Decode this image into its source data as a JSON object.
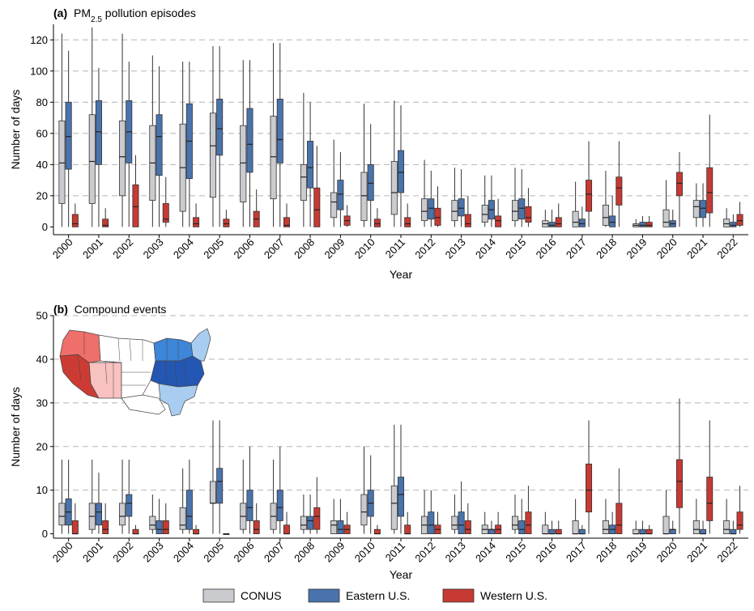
{
  "colors": {
    "CONUS": "#c9cbcf",
    "Eastern U.S.": "#4a73ad",
    "Western U.S.": "#c63a33",
    "grid": "#b5b5b5",
    "map_western_dark": "#cc3b33",
    "map_western_mid": "#ef6f6a",
    "map_western_light": "#f7c2c0",
    "map_eastern_dark": "#2457b3",
    "map_eastern_mid": "#3d86d8",
    "map_eastern_light": "#a9cdf0"
  },
  "panels": {
    "a": {
      "tag": "(a)",
      "title_main": "PM",
      "title_sub": "2.5",
      "title_rest": " pollution episodes"
    },
    "b": {
      "tag": "(b)",
      "title_rest": "Compound events"
    }
  },
  "legend": {
    "items": [
      {
        "label": "CONUS",
        "color": "#c9cbcf"
      },
      {
        "label": "Eastern U.S.",
        "color": "#4a73ad"
      },
      {
        "label": "Western U.S.",
        "color": "#c63a33"
      }
    ]
  },
  "chart_data": [
    {
      "type": "boxplot",
      "title": "PM2.5 pollution episodes",
      "xlabel": "Year",
      "ylabel": "Number of days",
      "ylim": [
        -5,
        130
      ],
      "yticks": [
        0,
        20,
        40,
        60,
        80,
        100,
        120
      ],
      "grid": "horizontal dashed",
      "categories": [
        "2000",
        "2001",
        "2002",
        "2003",
        "2004",
        "2005",
        "2006",
        "2007",
        "2008",
        "2009",
        "2010",
        "2011",
        "2012",
        "2013",
        "2014",
        "2015",
        "2016",
        "2017",
        "2018",
        "2019",
        "2020",
        "2021",
        "2022"
      ],
      "series": [
        {
          "name": "CONUS",
          "boxes": [
            [
              0,
              15,
              41,
              68,
              124
            ],
            [
              0,
              15,
              42,
              72,
              128
            ],
            [
              0,
              20,
              45,
              68,
              124
            ],
            [
              0,
              17,
              41,
              65,
              110
            ],
            [
              0,
              10,
              38,
              66,
              106
            ],
            [
              0,
              19,
              52,
              73,
              116
            ],
            [
              0,
              16,
              41,
              65,
              107
            ],
            [
              0,
              18,
              45,
              71,
              118
            ],
            [
              0,
              17,
              32,
              40,
              86
            ],
            [
              0,
              6,
              16,
              22,
              56
            ],
            [
              0,
              4,
              20,
              35,
              79
            ],
            [
              0,
              8,
              22,
              42,
              81
            ],
            [
              0,
              4,
              10,
              18,
              43
            ],
            [
              0,
              4,
              10,
              17,
              38
            ],
            [
              0,
              3,
              8,
              14,
              33
            ],
            [
              0,
              4,
              10,
              17,
              38
            ],
            [
              0,
              0,
              2,
              4,
              11
            ],
            [
              0,
              0,
              3,
              10,
              29
            ],
            [
              0,
              1,
              6,
              14,
              36
            ],
            [
              0,
              0,
              1,
              2,
              5
            ],
            [
              0,
              0,
              3,
              11,
              30
            ],
            [
              0,
              6,
              13,
              17,
              28
            ],
            [
              0,
              0,
              2,
              5,
              12
            ]
          ]
        },
        {
          "name": "Eastern U.S.",
          "boxes": [
            [
              0,
              37,
              58,
              80,
              113
            ],
            [
              0,
              40,
              61,
              81,
              102
            ],
            [
              0,
              41,
              61,
              81,
              106
            ],
            [
              0,
              33,
              58,
              72,
              103
            ],
            [
              0,
              31,
              55,
              79,
              106
            ],
            [
              0,
              46,
              63,
              82,
              116
            ],
            [
              0,
              35,
              53,
              76,
              107
            ],
            [
              0,
              41,
              56,
              82,
              118
            ],
            [
              0,
              25,
              38,
              55,
              80
            ],
            [
              0,
              11,
              21,
              30,
              48
            ],
            [
              0,
              17,
              28,
              40,
              66
            ],
            [
              0,
              22,
              35,
              49,
              78
            ],
            [
              0,
              5,
              12,
              18,
              36
            ],
            [
              0,
              7,
              12,
              18,
              37
            ],
            [
              0,
              5,
              11,
              17,
              33
            ],
            [
              0,
              5,
              12,
              18,
              37
            ],
            [
              0,
              0,
              1,
              3,
              11
            ],
            [
              0,
              0,
              2,
              5,
              13
            ],
            [
              0,
              0,
              3,
              7,
              20
            ],
            [
              0,
              0,
              1,
              3,
              7
            ],
            [
              0,
              0,
              2,
              4,
              11
            ],
            [
              0,
              6,
              12,
              17,
              28
            ],
            [
              0,
              0,
              1,
              3,
              8
            ]
          ]
        },
        {
          "name": "Western U.S.",
          "boxes": [
            [
              0,
              0,
              2,
              8,
              15
            ],
            [
              0,
              0,
              1,
              5,
              12
            ],
            [
              0,
              0,
              13,
              27,
              46
            ],
            [
              0,
              3,
              5,
              15,
              32
            ],
            [
              0,
              0,
              2,
              6,
              15
            ],
            [
              0,
              0,
              2,
              5,
              11
            ],
            [
              0,
              0,
              5,
              10,
              24
            ],
            [
              0,
              0,
              1,
              6,
              15
            ],
            [
              0,
              0,
              11,
              25,
              52
            ],
            [
              0,
              1,
              4,
              7,
              14
            ],
            [
              0,
              0,
              2,
              5,
              12
            ],
            [
              0,
              0,
              2,
              6,
              15
            ],
            [
              0,
              1,
              6,
              12,
              26
            ],
            [
              0,
              0,
              2,
              8,
              20
            ],
            [
              0,
              0,
              4,
              7,
              18
            ],
            [
              0,
              3,
              6,
              13,
              25
            ],
            [
              0,
              0,
              2,
              6,
              15
            ],
            [
              0,
              10,
              21,
              30,
              55
            ],
            [
              0,
              14,
              25,
              32,
              55
            ],
            [
              0,
              0,
              1,
              3,
              7
            ],
            [
              0,
              20,
              28,
              35,
              48
            ],
            [
              0,
              9,
              22,
              38,
              72
            ],
            [
              0,
              1,
              4,
              8,
              16
            ]
          ]
        }
      ]
    },
    {
      "type": "boxplot",
      "title": "Compound events",
      "xlabel": "Year",
      "ylabel": "Number of days",
      "ylim": [
        -1,
        50
      ],
      "yticks": [
        0,
        10,
        20,
        30,
        40,
        50
      ],
      "grid": "horizontal dashed",
      "categories": [
        "2000",
        "2001",
        "2002",
        "2003",
        "2004",
        "2005",
        "2006",
        "2007",
        "2008",
        "2009",
        "2010",
        "2011",
        "2012",
        "2013",
        "2014",
        "2015",
        "2016",
        "2017",
        "2018",
        "2019",
        "2020",
        "2021",
        "2022"
      ],
      "series": [
        {
          "name": "CONUS",
          "boxes": [
            [
              0,
              2,
              4,
              7,
              17
            ],
            [
              0,
              1,
              4,
              7,
              17
            ],
            [
              0,
              2,
              4,
              7,
              17
            ],
            [
              0,
              1,
              2,
              4,
              9
            ],
            [
              0,
              1,
              2,
              6,
              15
            ],
            [
              0,
              7,
              7,
              12,
              26
            ],
            [
              0,
              1,
              4,
              7,
              17
            ],
            [
              0,
              1,
              4,
              7,
              17
            ],
            [
              0,
              1,
              2,
              4,
              9
            ],
            [
              0,
              0,
              2,
              3,
              8
            ],
            [
              0,
              2,
              5,
              9,
              20
            ],
            [
              0,
              1,
              7,
              11,
              25
            ],
            [
              0,
              0,
              2,
              4,
              10
            ],
            [
              0,
              1,
              2,
              4,
              9
            ],
            [
              0,
              0,
              1,
              2,
              5
            ],
            [
              0,
              1,
              2,
              4,
              9
            ],
            [
              0,
              0,
              0,
              2,
              5
            ],
            [
              0,
              0,
              0,
              3,
              8
            ],
            [
              0,
              0,
              1,
              3,
              8
            ],
            [
              0,
              0,
              0,
              1,
              3
            ],
            [
              0,
              0,
              0,
              4,
              10
            ],
            [
              0,
              0,
              1,
              3,
              8
            ],
            [
              0,
              0,
              1,
              3,
              8
            ]
          ]
        },
        {
          "name": "Eastern U.S.",
          "boxes": [
            [
              0,
              2,
              5,
              8,
              17
            ],
            [
              0,
              2,
              5,
              7,
              14
            ],
            [
              0,
              4,
              7,
              9,
              17
            ],
            [
              0,
              0,
              1,
              3,
              8
            ],
            [
              0,
              1,
              4,
              10,
              17
            ],
            [
              0,
              7,
              12,
              15,
              26
            ],
            [
              0,
              3,
              6,
              10,
              20
            ],
            [
              0,
              3,
              6,
              10,
              20
            ],
            [
              0,
              1,
              3,
              4,
              9
            ],
            [
              0,
              0,
              1,
              3,
              8
            ],
            [
              0,
              4,
              7,
              10,
              18
            ],
            [
              0,
              4,
              9,
              13,
              25
            ],
            [
              0,
              0,
              2,
              5,
              10
            ],
            [
              0,
              0,
              2,
              5,
              12
            ],
            [
              0,
              0,
              1,
              1,
              3
            ],
            [
              0,
              0,
              1,
              3,
              8
            ],
            [
              0,
              0,
              0,
              1,
              3
            ],
            [
              0,
              0,
              0,
              1,
              2
            ],
            [
              0,
              0,
              1,
              2,
              5
            ],
            [
              0,
              0,
              0,
              1,
              3
            ],
            [
              0,
              0,
              1,
              1,
              3
            ],
            [
              0,
              0,
              0,
              1,
              3
            ],
            [
              0,
              0,
              0,
              1,
              3
            ]
          ]
        },
        {
          "name": "Western U.S.",
          "boxes": [
            [
              0,
              0,
              0,
              3,
              7
            ],
            [
              0,
              0,
              1,
              3,
              7
            ],
            [
              0,
              0,
              0,
              1,
              2
            ],
            [
              0,
              0,
              1,
              3,
              7
            ],
            [
              0,
              0,
              0,
              1,
              2
            ],
            [
              0,
              0,
              0,
              0,
              0
            ],
            [
              0,
              0,
              1,
              3,
              7
            ],
            [
              0,
              0,
              0,
              2,
              5
            ],
            [
              0,
              1,
              4,
              6,
              13
            ],
            [
              0,
              0,
              1,
              2,
              5
            ],
            [
              0,
              0,
              0,
              1,
              2
            ],
            [
              0,
              0,
              0,
              2,
              5
            ],
            [
              0,
              0,
              1,
              2,
              5
            ],
            [
              0,
              0,
              1,
              3,
              7
            ],
            [
              0,
              0,
              1,
              2,
              5
            ],
            [
              0,
              0,
              2,
              5,
              11
            ],
            [
              0,
              0,
              0,
              1,
              3
            ],
            [
              0,
              5,
              10,
              16,
              26
            ],
            [
              0,
              0,
              2,
              7,
              15
            ],
            [
              0,
              0,
              0,
              1,
              2
            ],
            [
              0,
              6,
              12,
              17,
              31
            ],
            [
              0,
              3,
              7,
              13,
              26
            ],
            [
              0,
              1,
              2,
              5,
              11
            ]
          ]
        }
      ]
    }
  ]
}
